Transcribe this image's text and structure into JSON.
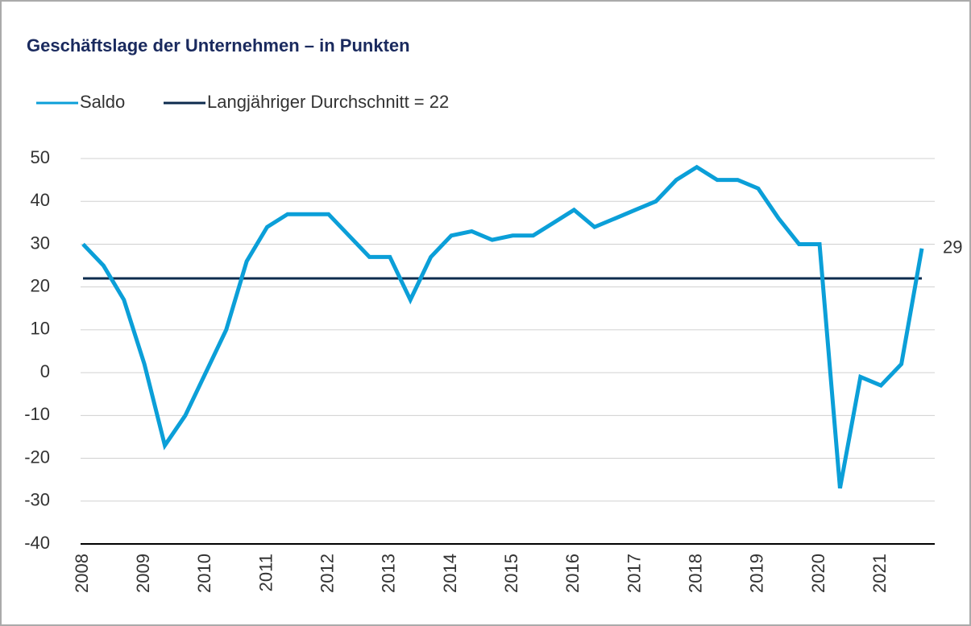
{
  "chart_data": {
    "type": "line",
    "title": "Geschäftslage der Unternehmen – in Punkten",
    "categories": [
      "2008",
      null,
      null,
      "2009",
      null,
      null,
      "2010",
      null,
      null,
      "2011",
      null,
      null,
      "2012",
      null,
      null,
      "2013",
      null,
      null,
      "2014",
      null,
      null,
      "2015",
      null,
      null,
      "2016",
      null,
      null,
      "2017",
      null,
      null,
      "2018",
      null,
      null,
      "2019",
      null,
      null,
      "2020",
      null,
      null,
      "2021",
      null,
      null
    ],
    "series": [
      {
        "name": "Saldo",
        "color": "#0b9fd8",
        "values": [
          30,
          25,
          17,
          2,
          -17,
          -10,
          0,
          10,
          26,
          34,
          37,
          37,
          37,
          32,
          27,
          27,
          17,
          27,
          32,
          33,
          31,
          32,
          32,
          35,
          38,
          34,
          36,
          38,
          40,
          45,
          48,
          45,
          45,
          43,
          36,
          30,
          30,
          -27,
          -1,
          -3,
          2,
          29
        ]
      },
      {
        "name": "Langjähriger Durchschnitt = 22",
        "color": "#0d2b4e",
        "values": [
          22,
          22,
          22,
          22,
          22,
          22,
          22,
          22,
          22,
          22,
          22,
          22,
          22,
          22,
          22,
          22,
          22,
          22,
          22,
          22,
          22,
          22,
          22,
          22,
          22,
          22,
          22,
          22,
          22,
          22,
          22,
          22,
          22,
          22,
          22,
          22,
          22,
          22,
          22,
          22,
          22,
          22
        ]
      }
    ],
    "ylim": [
      -40,
      50
    ],
    "yticks": [
      -40,
      -30,
      -20,
      -10,
      0,
      10,
      20,
      30,
      40,
      50
    ],
    "grid": true
  }
}
